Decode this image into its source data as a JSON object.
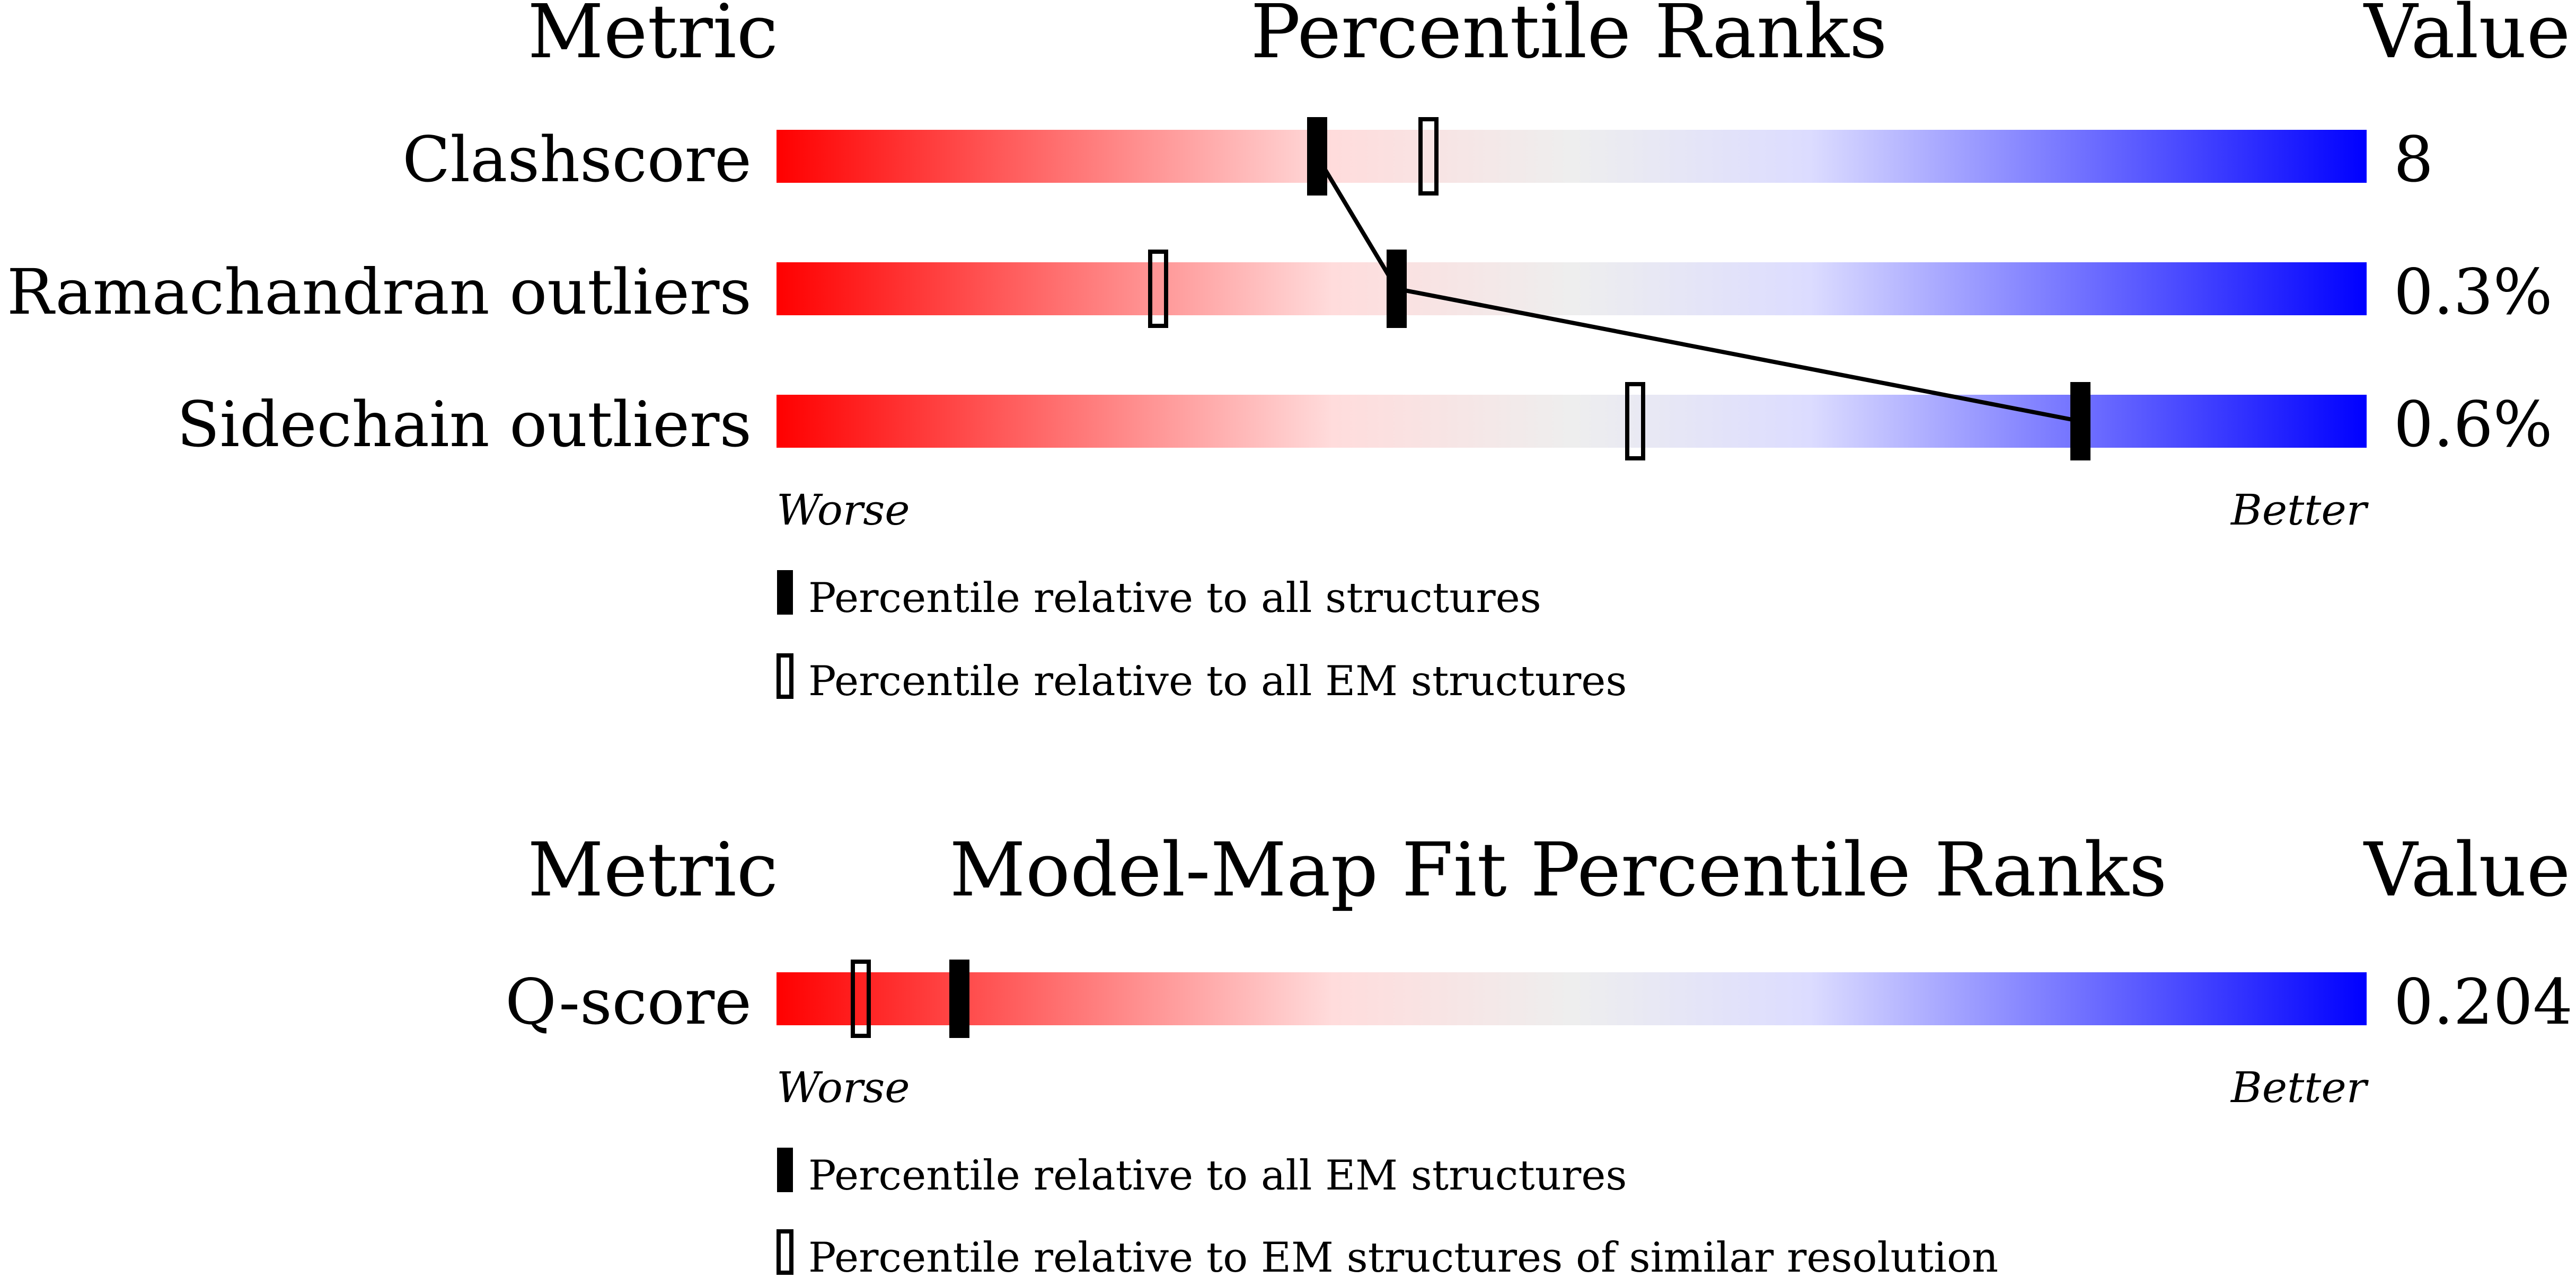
{
  "chart_data": [
    {
      "type": "bar",
      "header": {
        "metric": "Metric",
        "title": "Percentile Ranks",
        "value": "Value"
      },
      "axis": {
        "worse": "Worse",
        "better": "Better"
      },
      "xlim": [
        0,
        100
      ],
      "rows": [
        {
          "metric": "Clashscore",
          "value": "8",
          "all": 34,
          "em": 41
        },
        {
          "metric": "Ramachandran outliers",
          "value": "0.3%",
          "all": 39,
          "em": 24
        },
        {
          "metric": "Sidechain outliers",
          "value": "0.6%",
          "all": 82,
          "em": 54
        }
      ],
      "legend": [
        {
          "marker": "filled",
          "label": "Percentile relative to all structures"
        },
        {
          "marker": "open",
          "label": "Percentile relative to all EM structures"
        }
      ]
    },
    {
      "type": "bar",
      "header": {
        "metric": "Metric",
        "title": "Model-Map Fit Percentile Ranks",
        "value": "Value"
      },
      "axis": {
        "worse": "Worse",
        "better": "Better"
      },
      "xlim": [
        0,
        100
      ],
      "rows": [
        {
          "metric": "Q-score",
          "value": "0.204",
          "all": 11.5,
          "em": 5.3
        }
      ],
      "legend": [
        {
          "marker": "filled",
          "label": "Percentile relative to all EM structures"
        },
        {
          "marker": "open",
          "label": "Percentile relative to EM structures of similar resolution"
        }
      ]
    }
  ],
  "colors": {
    "worse": "#ff0000",
    "mid": "#eeeeee",
    "better": "#0000ff",
    "marker": "#000000"
  }
}
